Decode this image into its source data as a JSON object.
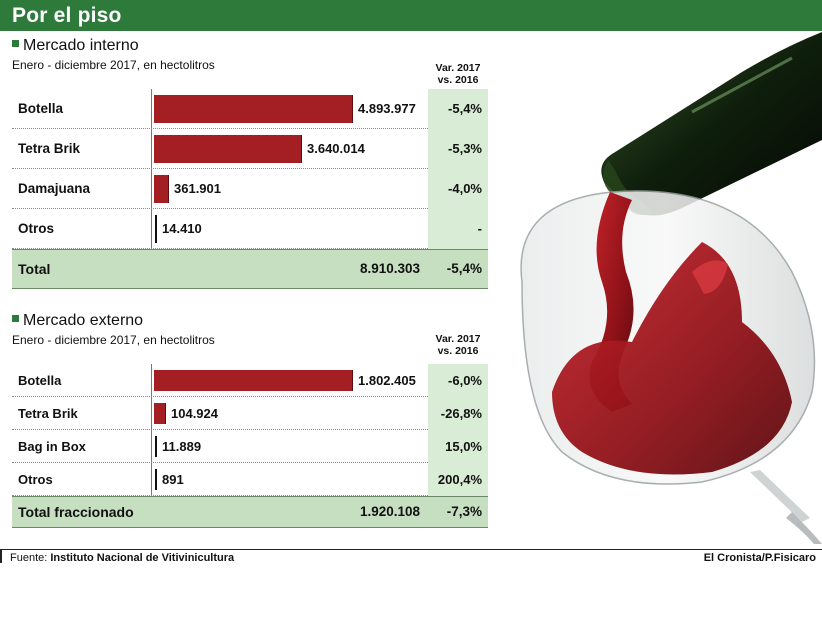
{
  "header": {
    "title": "Por el piso"
  },
  "chart_data": [
    {
      "type": "bar",
      "title": "Mercado interno",
      "subtitle": "Enero - diciembre 2017, en hectolitros",
      "var_header": [
        "Var. 2017",
        "vs. 2016"
      ],
      "categories": [
        "Botella",
        "Tetra Brik",
        "Damajuana",
        "Otros"
      ],
      "values": [
        4893977,
        3640014,
        361901,
        14410
      ],
      "value_labels": [
        "4.893.977",
        "3.640.014",
        "361.901",
        "14.410"
      ],
      "variation": [
        "-5,4%",
        "-5,3%",
        "-4,0%",
        "-"
      ],
      "total": {
        "label": "Total",
        "value": "8.910.303",
        "variation": "-5,4%"
      },
      "bar_color": "#a31f23"
    },
    {
      "type": "bar",
      "title": "Mercado externo",
      "subtitle": "Enero - diciembre 2017, en hectolitros",
      "var_header": [
        "Var. 2017",
        "vs. 2016"
      ],
      "categories": [
        "Botella",
        "Tetra Brik",
        "Bag in Box",
        "Otros"
      ],
      "values": [
        1802405,
        104924,
        11889,
        891
      ],
      "value_labels": [
        "1.802.405",
        "104.924",
        "11.889",
        "891"
      ],
      "variation": [
        "-6,0%",
        "-26,8%",
        "15,0%",
        "200,4%"
      ],
      "total": {
        "label": "Total fraccionado",
        "value": "1.920.108",
        "variation": "-7,3%"
      },
      "bar_color": "#a31f23"
    }
  ],
  "footer": {
    "source_prefix": "Fuente:",
    "source": "Instituto Nacional de Vitivinicultura",
    "credit": "El Cronista/P.Fisicaro"
  },
  "colors": {
    "header": "#2e7a3a",
    "bar": "#a31f23",
    "var_column": "#d9ecd5",
    "total_row": "#c6dfc1"
  }
}
